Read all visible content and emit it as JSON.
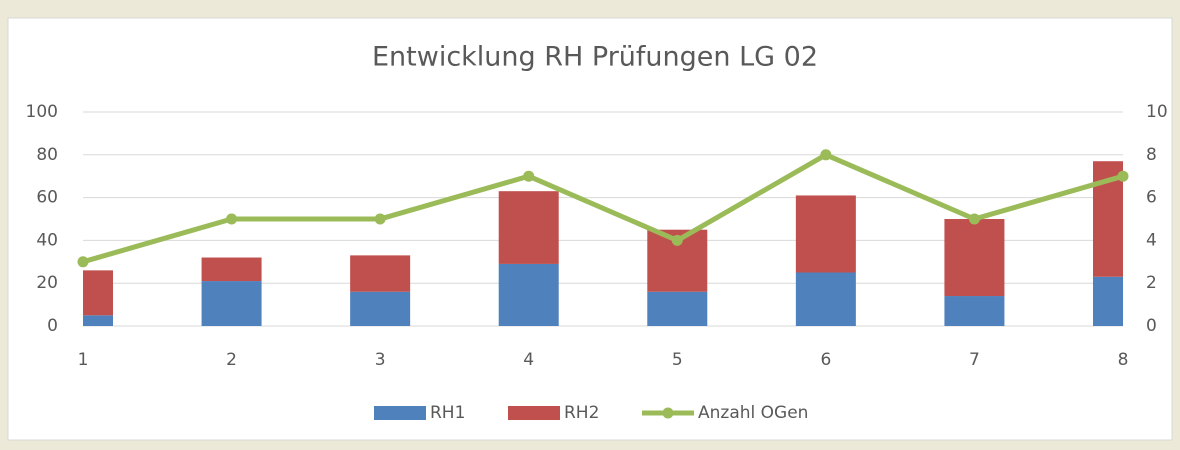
{
  "chart_data": {
    "type": "bar",
    "stacked": true,
    "title": "Entwicklung RH Prüfungen LG 02",
    "x": [
      1,
      2,
      3,
      4,
      5,
      6,
      7,
      8
    ],
    "xlim": [
      1,
      8
    ],
    "xticks": [
      1,
      2,
      3,
      4,
      5,
      6,
      7,
      8
    ],
    "ylim": [
      0,
      100
    ],
    "yticks": [
      0,
      20,
      40,
      60,
      80,
      100
    ],
    "y2lim": [
      0,
      10
    ],
    "y2ticks": [
      0,
      2,
      4,
      6,
      8,
      10
    ],
    "grid": true,
    "legend": "bottom",
    "series": [
      {
        "name": "RH1",
        "type": "bar",
        "color": "#4f81bd",
        "values": [
          5,
          21,
          16,
          29,
          16,
          25,
          14,
          23
        ]
      },
      {
        "name": "RH2",
        "type": "bar",
        "color": "#c0504d",
        "values": [
          21,
          11,
          17,
          34,
          29,
          36,
          36,
          54
        ]
      },
      {
        "name": "Anzahl OGen",
        "type": "line",
        "axis": "y2",
        "color": "#9bbb59",
        "values": [
          3,
          5,
          5,
          7,
          4,
          8,
          5,
          7
        ]
      }
    ]
  }
}
